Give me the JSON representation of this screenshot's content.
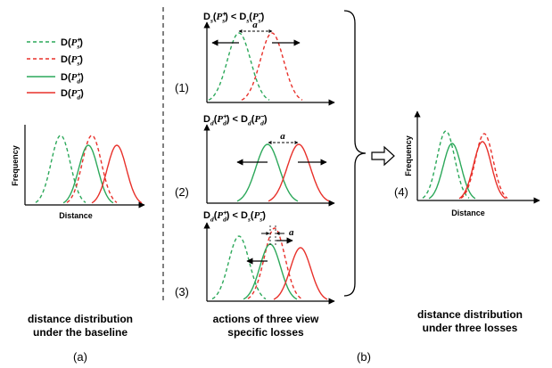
{
  "legend": {
    "items": [
      {
        "func": "D",
        "var": "P",
        "sup": "+",
        "sub": "s",
        "color": "#2ca85a",
        "style": "dashed"
      },
      {
        "func": "D",
        "var": "P",
        "sup": "−",
        "sub": "s",
        "color": "#e8302a",
        "style": "dashed"
      },
      {
        "func": "D",
        "var": "P",
        "sup": "+",
        "sub": "d",
        "color": "#2ca85a",
        "style": "solid"
      },
      {
        "func": "D",
        "var": "P",
        "sup": "−",
        "sub": "d",
        "color": "#e8302a",
        "style": "solid"
      }
    ]
  },
  "axes": {
    "ylabel": "Frequency",
    "xlabel": "Distance"
  },
  "panels": {
    "p1": {
      "index": "(1)",
      "condition": {
        "lhs_sub": "s",
        "lhs_sup": "+",
        "lhs_arg_sub": "s",
        "rhs_sub": "s",
        "rhs_sup": "−",
        "rhs_arg_sub": "s"
      },
      "margin": "a"
    },
    "p2": {
      "index": "(2)",
      "condition": {
        "lhs_sub": "d",
        "lhs_sup": "+",
        "lhs_arg_sub": "d",
        "rhs_sub": "d",
        "rhs_sup": "−",
        "rhs_arg_sub": "d"
      },
      "margin": "a"
    },
    "p3": {
      "index": "(3)",
      "condition": {
        "lhs_sub": "d",
        "lhs_sup": "+",
        "lhs_arg_sub": "d",
        "rhs_sub": "s",
        "rhs_sup": "−",
        "rhs_arg_sub": "s"
      },
      "margin": "a"
    },
    "p4": {
      "index": "(4)"
    }
  },
  "captions": {
    "a_line1": "distance distribution",
    "a_line2": "under the baseline",
    "b_line1": "actions of three view",
    "b_line2": "specific losses",
    "c_line1": "distance distribution",
    "c_line2": "under three losses",
    "label_a": "(a)",
    "label_b": "(b)"
  },
  "colors": {
    "positive": "#2ca85a",
    "negative": "#e8302a",
    "divider": "#000000"
  }
}
